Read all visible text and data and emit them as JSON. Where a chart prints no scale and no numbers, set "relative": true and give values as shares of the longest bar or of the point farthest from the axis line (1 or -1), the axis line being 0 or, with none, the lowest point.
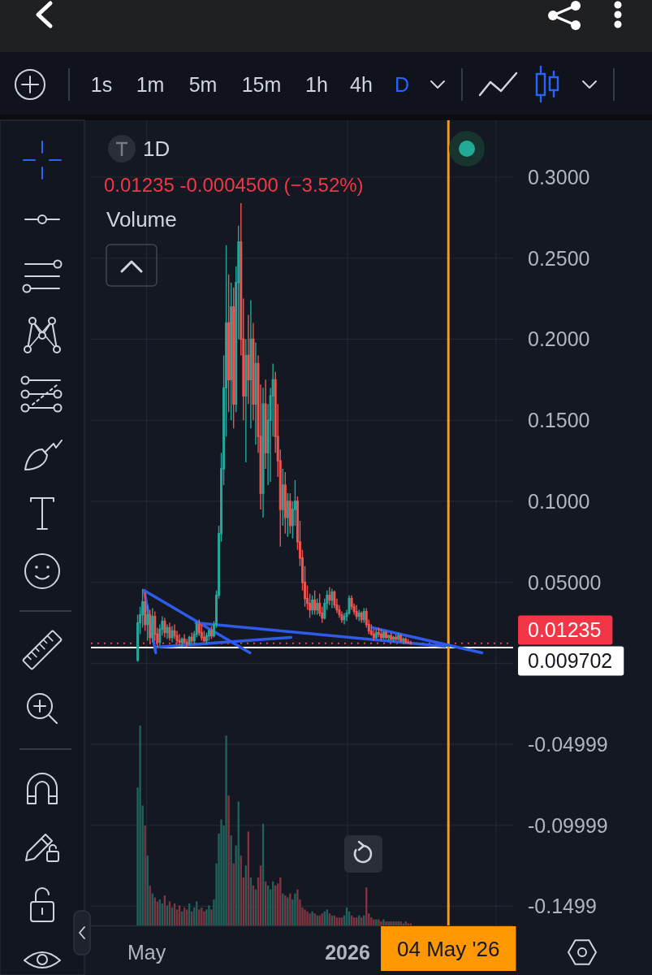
{
  "chart_data": [
    {
      "type": "candlestick",
      "title": "1D",
      "subtitle": "0.01235 -0.0004500 (−3.52%)",
      "x": [
        "2025-04-20",
        "2025-04-23",
        "2025-04-26",
        "2025-04-29",
        "2025-05-02",
        "2025-05-05",
        "2025-05-08",
        "2025-05-11",
        "2025-05-14",
        "2025-05-17",
        "2025-05-20",
        "2025-05-23",
        "2025-05-26",
        "2025-05-29",
        "2025-06-01",
        "2025-06-04",
        "2025-06-07",
        "2025-06-10",
        "2025-06-13",
        "2025-06-16",
        "2025-06-19",
        "2025-06-22",
        "2025-06-25",
        "2025-06-28",
        "2025-07-01",
        "2025-07-04",
        "2025-07-07",
        "2025-07-10",
        "2025-07-13",
        "2025-07-16",
        "2025-07-19",
        "2025-07-22",
        "2025-07-25",
        "2025-07-28",
        "2025-07-31",
        "2025-08-03",
        "2025-08-06",
        "2025-08-09",
        "2025-08-12",
        "2025-08-15",
        "2025-08-18",
        "2025-08-21",
        "2025-08-24",
        "2025-08-27",
        "2025-08-30",
        "2025-09-02",
        "2025-09-05",
        "2025-09-08",
        "2025-09-11",
        "2025-09-14",
        "2025-09-17",
        "2025-09-20",
        "2025-09-23",
        "2025-09-26",
        "2025-09-29",
        "2025-10-02",
        "2025-10-05",
        "2025-10-08",
        "2025-10-11",
        "2025-10-14",
        "2025-10-17",
        "2025-10-20",
        "2025-10-23",
        "2025-10-26",
        "2025-10-29",
        "2025-11-01",
        "2025-11-04",
        "2025-11-07",
        "2025-11-10",
        "2025-11-13",
        "2025-11-16",
        "2025-11-19",
        "2025-11-22",
        "2025-11-25",
        "2025-11-28",
        "2025-12-01",
        "2025-12-04",
        "2025-12-07",
        "2025-12-10",
        "2025-12-13",
        "2025-12-16",
        "2025-12-19",
        "2025-12-22",
        "2025-12-25",
        "2025-12-28",
        "2025-12-31",
        "2026-01-03",
        "2026-01-06",
        "2026-01-09",
        "2026-01-12",
        "2026-01-15",
        "2026-01-18",
        "2026-01-21",
        "2026-01-24",
        "2026-01-27",
        "2026-01-30",
        "2026-02-02",
        "2026-02-05",
        "2026-02-08",
        "2026-02-11",
        "2026-02-14",
        "2026-02-17",
        "2026-02-20",
        "2026-02-23",
        "2026-02-26",
        "2026-03-01",
        "2026-03-04",
        "2026-03-07",
        "2026-03-10",
        "2026-03-13",
        "2026-03-16",
        "2026-03-19"
      ],
      "ohlc": [
        [
          0.002,
          0.03,
          0.001,
          0.025
        ],
        [
          0.025,
          0.035,
          0.018,
          0.03
        ],
        [
          0.03,
          0.046,
          0.022,
          0.038
        ],
        [
          0.038,
          0.044,
          0.02,
          0.024
        ],
        [
          0.024,
          0.036,
          0.014,
          0.03
        ],
        [
          0.03,
          0.033,
          0.012,
          0.016
        ],
        [
          0.016,
          0.034,
          0.013,
          0.029
        ],
        [
          0.029,
          0.032,
          0.014,
          0.018
        ],
        [
          0.018,
          0.022,
          0.01,
          0.013
        ],
        [
          0.013,
          0.024,
          0.011,
          0.021
        ],
        [
          0.021,
          0.029,
          0.017,
          0.026
        ],
        [
          0.026,
          0.028,
          0.016,
          0.019
        ],
        [
          0.019,
          0.024,
          0.015,
          0.022
        ],
        [
          0.022,
          0.025,
          0.014,
          0.016
        ],
        [
          0.016,
          0.023,
          0.013,
          0.02
        ],
        [
          0.02,
          0.024,
          0.015,
          0.017
        ],
        [
          0.017,
          0.02,
          0.012,
          0.014
        ],
        [
          0.014,
          0.018,
          0.011,
          0.013
        ],
        [
          0.013,
          0.016,
          0.01,
          0.015
        ],
        [
          0.015,
          0.018,
          0.012,
          0.013
        ],
        [
          0.013,
          0.015,
          0.01,
          0.012
        ],
        [
          0.012,
          0.017,
          0.011,
          0.016
        ],
        [
          0.016,
          0.019,
          0.012,
          0.014
        ],
        [
          0.014,
          0.02,
          0.012,
          0.018
        ],
        [
          0.018,
          0.026,
          0.016,
          0.024
        ],
        [
          0.024,
          0.027,
          0.017,
          0.019
        ],
        [
          0.019,
          0.024,
          0.014,
          0.016
        ],
        [
          0.016,
          0.02,
          0.013,
          0.014
        ],
        [
          0.014,
          0.019,
          0.012,
          0.017
        ],
        [
          0.017,
          0.021,
          0.014,
          0.02
        ],
        [
          0.02,
          0.023,
          0.015,
          0.017
        ],
        [
          0.017,
          0.026,
          0.016,
          0.024
        ],
        [
          0.024,
          0.045,
          0.022,
          0.042
        ],
        [
          0.042,
          0.085,
          0.04,
          0.08
        ],
        [
          0.08,
          0.13,
          0.075,
          0.12
        ],
        [
          0.12,
          0.19,
          0.11,
          0.17
        ],
        [
          0.17,
          0.258,
          0.14,
          0.21
        ],
        [
          0.21,
          0.24,
          0.155,
          0.175
        ],
        [
          0.175,
          0.235,
          0.15,
          0.22
        ],
        [
          0.22,
          0.232,
          0.145,
          0.16
        ],
        [
          0.16,
          0.245,
          0.155,
          0.235
        ],
        [
          0.235,
          0.27,
          0.2,
          0.26
        ],
        [
          0.26,
          0.284,
          0.19,
          0.2
        ],
        [
          0.2,
          0.225,
          0.15,
          0.165
        ],
        [
          0.165,
          0.2,
          0.124,
          0.19
        ],
        [
          0.19,
          0.215,
          0.16,
          0.175
        ],
        [
          0.175,
          0.224,
          0.145,
          0.2
        ],
        [
          0.2,
          0.21,
          0.15,
          0.16
        ],
        [
          0.16,
          0.198,
          0.135,
          0.185
        ],
        [
          0.185,
          0.19,
          0.13,
          0.14
        ],
        [
          0.14,
          0.172,
          0.095,
          0.105
        ],
        [
          0.105,
          0.17,
          0.09,
          0.16
        ],
        [
          0.16,
          0.175,
          0.12,
          0.13
        ],
        [
          0.13,
          0.16,
          0.11,
          0.15
        ],
        [
          0.15,
          0.17,
          0.112,
          0.165
        ],
        [
          0.165,
          0.185,
          0.14,
          0.175
        ],
        [
          0.175,
          0.18,
          0.13,
          0.14
        ],
        [
          0.14,
          0.16,
          0.115,
          0.125
        ],
        [
          0.125,
          0.132,
          0.072,
          0.095
        ],
        [
          0.095,
          0.12,
          0.085,
          0.11
        ],
        [
          0.11,
          0.118,
          0.08,
          0.09
        ],
        [
          0.09,
          0.105,
          0.078,
          0.1
        ],
        [
          0.1,
          0.105,
          0.08,
          0.085
        ],
        [
          0.085,
          0.1,
          0.077,
          0.095
        ],
        [
          0.095,
          0.113,
          0.085,
          0.1
        ],
        [
          0.1,
          0.103,
          0.07,
          0.075
        ],
        [
          0.075,
          0.088,
          0.06,
          0.065
        ],
        [
          0.065,
          0.07,
          0.045,
          0.05
        ],
        [
          0.05,
          0.06,
          0.035,
          0.04
        ],
        [
          0.04,
          0.048,
          0.033,
          0.037
        ],
        [
          0.037,
          0.043,
          0.028,
          0.033
        ],
        [
          0.033,
          0.042,
          0.03,
          0.039
        ],
        [
          0.039,
          0.045,
          0.03,
          0.033
        ],
        [
          0.033,
          0.04,
          0.03,
          0.037
        ],
        [
          0.037,
          0.043,
          0.029,
          0.031
        ],
        [
          0.031,
          0.035,
          0.025,
          0.028
        ],
        [
          0.028,
          0.04,
          0.027,
          0.037
        ],
        [
          0.037,
          0.045,
          0.033,
          0.042
        ],
        [
          0.042,
          0.047,
          0.036,
          0.039
        ],
        [
          0.039,
          0.046,
          0.034,
          0.044
        ],
        [
          0.044,
          0.045,
          0.034,
          0.036
        ],
        [
          0.036,
          0.04,
          0.031,
          0.033
        ],
        [
          0.033,
          0.036,
          0.028,
          0.03
        ],
        [
          0.03,
          0.032,
          0.025,
          0.027
        ],
        [
          0.027,
          0.031,
          0.024,
          0.029
        ],
        [
          0.029,
          0.033,
          0.026,
          0.031
        ],
        [
          0.031,
          0.042,
          0.03,
          0.04
        ],
        [
          0.04,
          0.042,
          0.033,
          0.035
        ],
        [
          0.035,
          0.037,
          0.03,
          0.032
        ],
        [
          0.032,
          0.036,
          0.027,
          0.029
        ],
        [
          0.029,
          0.033,
          0.026,
          0.031
        ],
        [
          0.031,
          0.032,
          0.025,
          0.027
        ],
        [
          0.027,
          0.034,
          0.025,
          0.032
        ],
        [
          0.032,
          0.034,
          0.022,
          0.024
        ],
        [
          0.024,
          0.027,
          0.018,
          0.02
        ],
        [
          0.02,
          0.024,
          0.017,
          0.018
        ],
        [
          0.018,
          0.021,
          0.014,
          0.016
        ],
        [
          0.016,
          0.021,
          0.015,
          0.019
        ],
        [
          0.019,
          0.022,
          0.016,
          0.018
        ],
        [
          0.018,
          0.021,
          0.014,
          0.016
        ],
        [
          0.016,
          0.02,
          0.015,
          0.019
        ],
        [
          0.019,
          0.02,
          0.015,
          0.016
        ],
        [
          0.016,
          0.018,
          0.014,
          0.017
        ],
        [
          0.017,
          0.019,
          0.014,
          0.015
        ],
        [
          0.015,
          0.017,
          0.013,
          0.016
        ],
        [
          0.016,
          0.018,
          0.014,
          0.015
        ],
        [
          0.015,
          0.019,
          0.014,
          0.017
        ],
        [
          0.017,
          0.018,
          0.013,
          0.014
        ],
        [
          0.014,
          0.016,
          0.012,
          0.015
        ],
        [
          0.015,
          0.016,
          0.012,
          0.013
        ],
        [
          0.013,
          0.015,
          0.012,
          0.0128
        ],
        [
          0.0128,
          0.014,
          0.0115,
          0.01235
        ]
      ],
      "series": [
        {
          "type": "line",
          "color": "#2f5bea",
          "x": [
            "2025-04-28",
            "2025-05-12"
          ],
          "values": [
            0.045,
            0.0065
          ]
        },
        {
          "type": "line",
          "color": "#2f5bea",
          "x": [
            "2025-04-28",
            "2025-09-04"
          ],
          "values": [
            0.045,
            0.0065
          ]
        },
        {
          "type": "line",
          "color": "#2f5bea",
          "x": [
            "2025-05-13",
            "2025-10-24"
          ],
          "values": [
            0.01,
            0.016
          ]
        },
        {
          "type": "line",
          "color": "#2f5bea",
          "x": [
            "2025-06-30",
            "2026-04-30"
          ],
          "values": [
            0.025,
            0.0105
          ]
        },
        {
          "type": "line",
          "color": "#2f5bea",
          "x": [
            "2026-01-31",
            "2026-06-14"
          ],
          "values": [
            0.022,
            0.0065
          ]
        }
      ],
      "xlim": [
        "2025-02-22",
        "2026-07-22"
      ],
      "xticks": [
        {
          "value": "2025-05-01",
          "label": "May"
        },
        {
          "value": "2026-01-01",
          "label": "2026"
        },
        {
          "value": "2026-07-01",
          "label": null
        }
      ],
      "ylim": [
        -0.1617,
        0.3351
      ],
      "yticks": [
        {
          "value": 0.3,
          "label": "0.3000"
        },
        {
          "value": 0.25,
          "label": "0.2500"
        },
        {
          "value": 0.2,
          "label": "0.2000"
        },
        {
          "value": 0.15,
          "label": "0.1500"
        },
        {
          "value": 0.1,
          "label": "0.1000"
        },
        {
          "value": 0.05,
          "label": "0.05000"
        },
        {
          "value": 0,
          "label": null
        },
        -0.04999,
        -0.09999,
        -0.1499
      ],
      "grid": true,
      "ref_lines": [
        {
          "axis": "y",
          "value": 0.01235,
          "label": "0.01235",
          "color": "#f23645",
          "line_style": "dotted"
        },
        {
          "axis": "y",
          "value": 0.009702,
          "label": "0.009702",
          "color": "#ffffff"
        },
        {
          "axis": "x",
          "value": "2026-05-04",
          "label": "04 May '26",
          "color": "#ff9800"
        }
      ],
      "annotations": [
        "1s",
        "1m",
        "5m",
        "15m",
        "1h",
        "4h",
        "D"
      ]
    },
    {
      "type": "bar",
      "title": "Volume",
      "relative": true,
      "x": [
        "2025-04-20",
        "2025-04-23",
        "2025-04-26",
        "2025-04-29",
        "2025-05-02",
        "2025-05-05",
        "2025-05-08",
        "2025-05-11",
        "2025-05-14",
        "2025-05-17",
        "2025-05-20",
        "2025-05-23",
        "2025-05-26",
        "2025-05-29",
        "2025-06-01",
        "2025-06-04",
        "2025-06-07",
        "2025-06-10",
        "2025-06-13",
        "2025-06-16",
        "2025-06-19",
        "2025-06-22",
        "2025-06-25",
        "2025-06-28",
        "2025-07-01",
        "2025-07-04",
        "2025-07-07",
        "2025-07-10",
        "2025-07-13",
        "2025-07-16",
        "2025-07-19",
        "2025-07-22",
        "2025-07-25",
        "2025-07-28",
        "2025-07-31",
        "2025-08-03",
        "2025-08-06",
        "2025-08-09",
        "2025-08-12",
        "2025-08-15",
        "2025-08-18",
        "2025-08-21",
        "2025-08-24",
        "2025-08-27",
        "2025-08-30",
        "2025-09-02",
        "2025-09-05",
        "2025-09-08",
        "2025-09-11",
        "2025-09-14",
        "2025-09-17",
        "2025-09-20",
        "2025-09-23",
        "2025-09-26",
        "2025-09-29",
        "2025-10-02",
        "2025-10-05",
        "2025-10-08",
        "2025-10-11",
        "2025-10-14",
        "2025-10-17",
        "2025-10-20",
        "2025-10-23",
        "2025-10-26",
        "2025-10-29",
        "2025-11-01",
        "2025-11-04",
        "2025-11-07",
        "2025-11-10",
        "2025-11-13",
        "2025-11-16",
        "2025-11-19",
        "2025-11-22",
        "2025-11-25",
        "2025-11-28",
        "2025-12-01",
        "2025-12-04",
        "2025-12-07",
        "2025-12-10",
        "2025-12-13",
        "2025-12-16",
        "2025-12-19",
        "2025-12-22",
        "2025-12-25",
        "2025-12-28",
        "2025-12-31",
        "2026-01-03",
        "2026-01-06",
        "2026-01-09",
        "2026-01-12",
        "2026-01-15",
        "2026-01-18",
        "2026-01-21",
        "2026-01-24",
        "2026-01-27",
        "2026-01-30",
        "2026-02-02",
        "2026-02-05",
        "2026-02-08",
        "2026-02-11",
        "2026-02-14",
        "2026-02-17",
        "2026-02-20",
        "2026-02-23",
        "2026-02-26",
        "2026-03-01",
        "2026-03-04",
        "2026-03-07",
        "2026-03-10",
        "2026-03-13",
        "2026-03-16",
        "2026-03-19"
      ],
      "values": [
        0.69,
        1,
        0.6,
        0.5,
        0.35,
        0.2,
        0.16,
        0.14,
        0.12,
        0.13,
        0.11,
        0.15,
        0.1,
        0.12,
        0.09,
        0.11,
        0.08,
        0.1,
        0.07,
        0.09,
        0.08,
        0.11,
        0.07,
        0.09,
        0.12,
        0.08,
        0.09,
        0.07,
        0.08,
        0.1,
        0.08,
        0.13,
        0.31,
        0.46,
        0.53,
        0.5,
        0.95,
        0.65,
        0.45,
        0.31,
        0.4,
        0.62,
        0.35,
        0.24,
        0.3,
        0.47,
        0.24,
        0.2,
        0.18,
        0.24,
        0.3,
        0.51,
        0.22,
        0.2,
        0.18,
        0.22,
        0.2,
        0.21,
        0.24,
        0.16,
        0.15,
        0.14,
        0.16,
        0.13,
        0.16,
        0.18,
        0.13,
        0.09,
        0.08,
        0.07,
        0.06,
        0.07,
        0.06,
        0.05,
        0.05,
        0.06,
        0.07,
        0.08,
        0.06,
        0.05,
        0.05,
        0.04,
        0.04,
        0.04,
        0.05,
        0.09,
        0.07,
        0.05,
        0.04,
        0.04,
        0.05,
        0.04,
        0.05,
        0.19,
        0.06,
        0.04,
        0.03,
        0.03,
        0.03,
        0.02,
        0.03,
        0.02,
        0.02,
        0.02,
        0.02,
        0.02,
        0.02,
        0.02,
        0.01,
        0.02,
        0.01,
        0.01
      ],
      "colors": [
        "#1f625b",
        "#1f625b",
        "#1f625b",
        "#7e3441",
        "#1f625b",
        "#7e3441",
        "#1f625b",
        "#7e3441",
        "#7e3441",
        "#1f625b",
        "#1f625b",
        "#7e3441",
        "#1f625b",
        "#7e3441",
        "#1f625b",
        "#7e3441",
        "#7e3441",
        "#7e3441",
        "#1f625b",
        "#7e3441",
        "#7e3441",
        "#1f625b",
        "#7e3441",
        "#1f625b",
        "#1f625b",
        "#7e3441",
        "#7e3441",
        "#7e3441",
        "#1f625b",
        "#1f625b",
        "#7e3441",
        "#1f625b",
        "#1f625b",
        "#1f625b",
        "#1f625b",
        "#1f625b",
        "#1f625b",
        "#7e3441",
        "#1f625b",
        "#7e3441",
        "#1f625b",
        "#1f625b",
        "#7e3441",
        "#7e3441",
        "#1f625b",
        "#7e3441",
        "#1f625b",
        "#7e3441",
        "#1f625b",
        "#7e3441",
        "#7e3441",
        "#1f625b",
        "#7e3441",
        "#1f625b",
        "#1f625b",
        "#1f625b",
        "#7e3441",
        "#7e3441",
        "#7e3441",
        "#1f625b",
        "#7e3441",
        "#1f625b",
        "#7e3441",
        "#1f625b",
        "#1f625b",
        "#7e3441",
        "#7e3441",
        "#7e3441",
        "#7e3441",
        "#7e3441",
        "#7e3441",
        "#1f625b",
        "#7e3441",
        "#1f625b",
        "#7e3441",
        "#7e3441",
        "#1f625b",
        "#1f625b",
        "#7e3441",
        "#1f625b",
        "#7e3441",
        "#7e3441",
        "#7e3441",
        "#7e3441",
        "#1f625b",
        "#1f625b",
        "#1f625b",
        "#7e3441",
        "#7e3441",
        "#7e3441",
        "#1f625b",
        "#7e3441",
        "#1f625b",
        "#7e3441",
        "#7e3441",
        "#7e3441",
        "#7e3441",
        "#1f625b",
        "#7e3441",
        "#7e3441",
        "#1f625b",
        "#7e3441",
        "#1f625b",
        "#7e3441",
        "#1f625b",
        "#7e3441",
        "#1f625b",
        "#7e3441",
        "#1f625b",
        "#7e3441",
        "#7e3441",
        "#7e3441"
      ],
      "xlim": [
        "2025-02-22",
        "2026-07-22"
      ]
    }
  ]
}
